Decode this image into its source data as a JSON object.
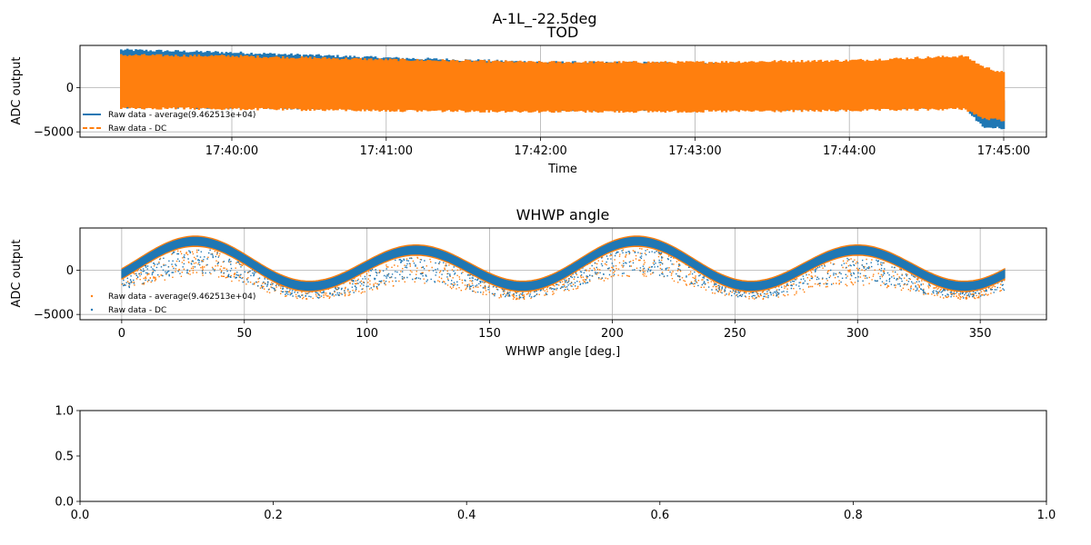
{
  "figure": {
    "suptitle": "A-1L_-22.5deg"
  },
  "colors": {
    "blue": "#1f77b4",
    "orange": "#ff7f0e",
    "grid": "#b0b0b0"
  },
  "chart_data": [
    {
      "type": "line",
      "title": "TOD",
      "xlabel": "Time",
      "ylabel": "ADC output",
      "x_range": [
        "17:39:17",
        "17:45:00"
      ],
      "ylim": [
        -5600,
        4800
      ],
      "xticks": [
        "17:40:00",
        "17:41:00",
        "17:42:00",
        "17:43:00",
        "17:44:00",
        "17:45:00"
      ],
      "yticks": [
        -5000,
        0
      ],
      "ytick_labels": [
        "−5000",
        "0"
      ],
      "grid": true,
      "legend": {
        "location": "lower-left",
        "entries": [
          "Raw data - average(9.462513e+04)",
          "Raw data - DC"
        ]
      },
      "series": [
        {
          "name": "Raw data - average(9.462513e+04)",
          "color": "#1f77b4",
          "style": "solid",
          "time": [
            "17:39:17",
            "17:40:00",
            "17:41:00",
            "17:42:00",
            "17:43:00",
            "17:44:00",
            "17:44:45",
            "17:44:52",
            "17:45:00"
          ],
          "upper": [
            4300,
            4000,
            3400,
            2900,
            2800,
            2700,
            2700,
            2200,
            -1500
          ],
          "lower": [
            -2200,
            -2300,
            -2400,
            -2500,
            -2500,
            -2400,
            -2200,
            -4500,
            -4600
          ]
        },
        {
          "name": "Raw data - DC",
          "color": "#ff7f0e",
          "style": "dashed",
          "time": [
            "17:39:17",
            "17:40:00",
            "17:41:00",
            "17:42:00",
            "17:43:00",
            "17:44:00",
            "17:44:45",
            "17:44:52",
            "17:45:00"
          ],
          "upper": [
            3700,
            3600,
            3200,
            2900,
            2900,
            3100,
            3600,
            2400,
            1700
          ],
          "lower": [
            -2300,
            -2400,
            -2600,
            -2700,
            -2700,
            -2600,
            -2400,
            -3500,
            -3700
          ]
        }
      ]
    },
    {
      "type": "scatter",
      "title": "WHWP angle",
      "xlabel": "WHWP angle [deg.]",
      "ylabel": "ADC output",
      "xlim": [
        -17,
        377
      ],
      "ylim": [
        -5600,
        4800
      ],
      "xticks": [
        0,
        50,
        100,
        150,
        200,
        250,
        300,
        350
      ],
      "yticks": [
        -5000,
        0
      ],
      "ytick_labels": [
        "−5000",
        "0"
      ],
      "grid": true,
      "legend": {
        "location": "lower-left",
        "entries": [
          "Raw data - average(9.462513e+04)",
          "Raw data - DC"
        ]
      },
      "model": {
        "offset": 500,
        "fourfold_amplitude": 2300,
        "fourfold_phase_deg": 30,
        "twofold_amplitude": 500,
        "twofold_phase_deg": 30
      },
      "series": [
        {
          "name": "Raw data - average(9.462513e+04)",
          "color": "#1f77b4",
          "band_halfwidth": 450,
          "scatter_spread": [
            1000,
            4500
          ]
        },
        {
          "name": "Raw data - DC",
          "color": "#ff7f0e",
          "band_halfwidth": 600,
          "scatter_spread": [
            1000,
            5000
          ]
        }
      ]
    },
    {
      "type": "line",
      "title": "",
      "xlabel": "",
      "ylabel": "",
      "xlim": [
        0,
        1
      ],
      "ylim": [
        0,
        1
      ],
      "xticks": [
        0,
        0.2,
        0.4,
        0.6,
        0.8,
        1
      ],
      "xtick_labels": [
        "0.0",
        "0.2",
        "0.4",
        "0.6",
        "0.8",
        "1.0"
      ],
      "yticks": [
        0,
        0.5,
        1
      ],
      "ytick_labels": [
        "0.0",
        "0.5",
        "1.0"
      ],
      "grid": false,
      "series": []
    }
  ]
}
